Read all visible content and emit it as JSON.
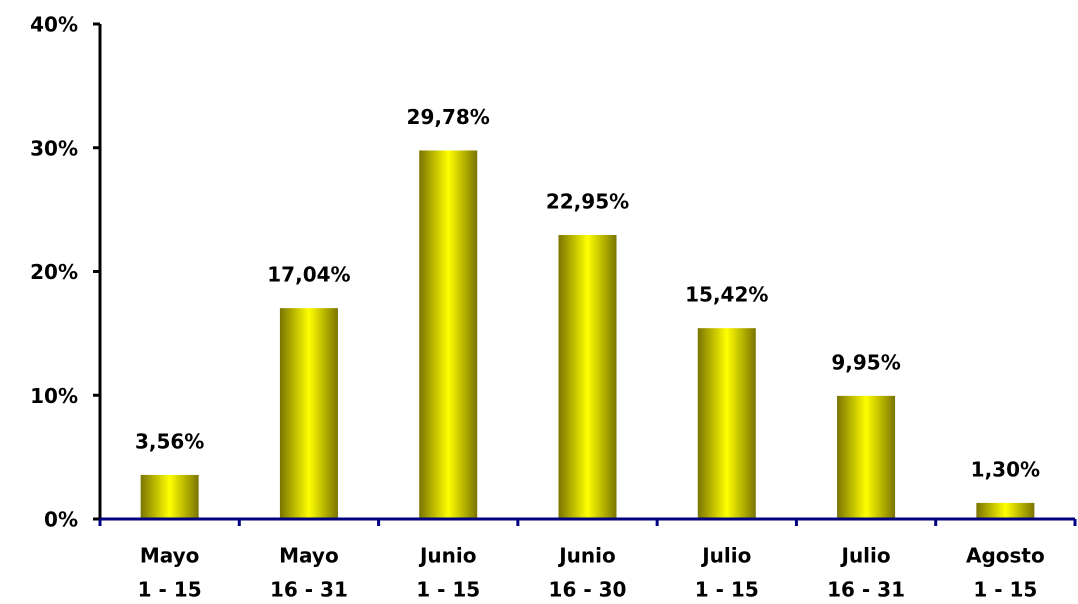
{
  "chart_data": {
    "type": "bar",
    "categories": [
      [
        "Mayo",
        "1 - 15"
      ],
      [
        "Mayo",
        "16 - 31"
      ],
      [
        "Junio",
        "1 - 15"
      ],
      [
        "Junio",
        "16 - 30"
      ],
      [
        "Julio",
        "1 - 15"
      ],
      [
        "Julio",
        "16 - 31"
      ],
      [
        "Agosto",
        "1 - 15"
      ]
    ],
    "values": [
      3.56,
      17.04,
      29.78,
      22.95,
      15.42,
      9.95,
      1.3
    ],
    "value_labels": [
      "3,56%",
      "17,04%",
      "29,78%",
      "22,95%",
      "15,42%",
      "9,95%",
      "1,30%"
    ],
    "color": "#ffff00",
    "ylim": [
      0,
      40
    ],
    "yticks": [
      {
        "value": 0,
        "label": "0%"
      },
      {
        "value": 10,
        "label": "10%"
      },
      {
        "value": 20,
        "label": "20%"
      },
      {
        "value": 30,
        "label": "30%"
      },
      {
        "value": 40,
        "label": "40%"
      }
    ]
  }
}
